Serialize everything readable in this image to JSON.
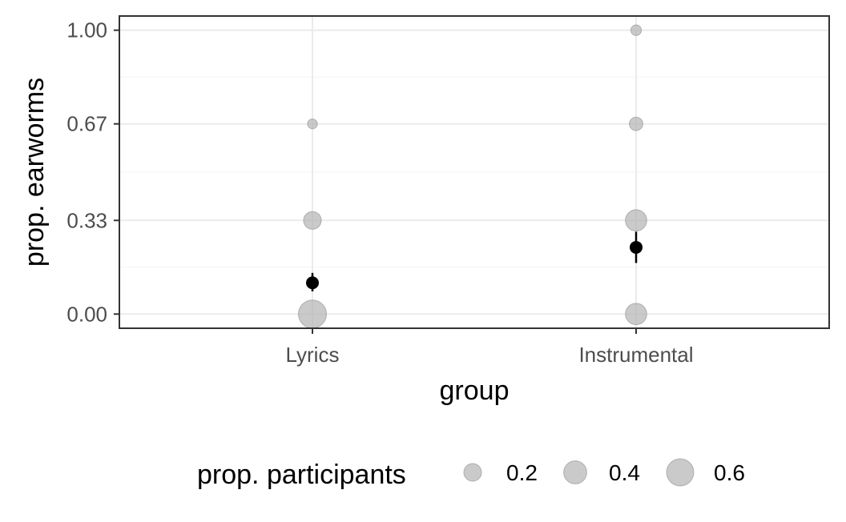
{
  "chart_data": {
    "type": "scatter",
    "xlabel": "group",
    "ylabel": "prop. earworms",
    "categories": [
      "Lyrics",
      "Instrumental"
    ],
    "ylim": [
      -0.05,
      1.05
    ],
    "yticks": [
      0.0,
      0.33,
      0.67,
      1.0
    ],
    "ytick_labels": [
      "0.00",
      "0.33",
      "0.67",
      "1.00"
    ],
    "grid": true,
    "colors": {
      "points": "#b3b3b3",
      "point_stroke": "#8c8c8c",
      "mean": "#000000",
      "panel_border": "#333333",
      "grid_major": "#ebebeb",
      "grid_minor": "#f3f3f3"
    },
    "points": [
      {
        "group": "Lyrics",
        "y": 0.0,
        "size": 0.65
      },
      {
        "group": "Lyrics",
        "y": 0.33,
        "size": 0.2
      },
      {
        "group": "Lyrics",
        "y": 0.67,
        "size": 0.03
      },
      {
        "group": "Instrumental",
        "y": 0.0,
        "size": 0.33
      },
      {
        "group": "Instrumental",
        "y": 0.33,
        "size": 0.33
      },
      {
        "group": "Instrumental",
        "y": 0.67,
        "size": 0.09
      },
      {
        "group": "Instrumental",
        "y": 1.0,
        "size": 0.04
      }
    ],
    "means": [
      {
        "group": "Lyrics",
        "y": 0.11,
        "lower": 0.08,
        "upper": 0.145
      },
      {
        "group": "Instrumental",
        "y": 0.235,
        "lower": 0.18,
        "upper": 0.29
      }
    ],
    "legend": {
      "title": "prop. participants",
      "position": "bottom",
      "entries": [
        {
          "label": "0.2",
          "size": 0.2
        },
        {
          "label": "0.4",
          "size": 0.4
        },
        {
          "label": "0.6",
          "size": 0.6
        }
      ]
    }
  }
}
